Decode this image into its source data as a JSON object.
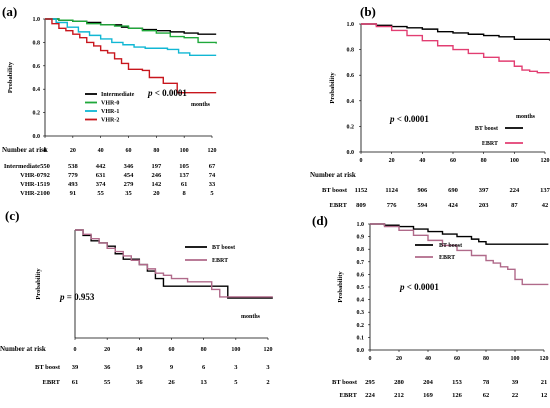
{
  "colors": {
    "black": "#000000",
    "green": "#1fa83a",
    "cyan": "#11b7d4",
    "red": "#c8161d",
    "pink": "#e23e72",
    "mauve": "#b06a8a"
  },
  "chart_data": [
    {
      "id": "a",
      "type": "line",
      "panel_label": "(a)",
      "ylabel": "Probability",
      "xlabel": "months",
      "xlim": [
        0,
        120
      ],
      "ylim": [
        0,
        1.0
      ],
      "x_ticks": [
        0,
        20,
        40,
        60,
        80,
        100,
        120
      ],
      "y_ticks": [
        "0.0",
        "0.2",
        "0.4",
        "0.6",
        "0.8",
        "1.0"
      ],
      "pvalue": "p < 0.0001",
      "legend": "inside bottom-left",
      "series": [
        {
          "name": "Intermediate",
          "color": "#000000",
          "x": [
            0,
            10,
            20,
            30,
            40,
            55,
            60,
            70,
            80,
            90,
            100,
            110,
            123
          ],
          "y": [
            1.0,
            0.99,
            0.98,
            0.97,
            0.95,
            0.93,
            0.92,
            0.91,
            0.9,
            0.89,
            0.88,
            0.87,
            0.87
          ]
        },
        {
          "name": "VHR-0",
          "color": "#1fa83a",
          "x": [
            0,
            10,
            20,
            30,
            40,
            50,
            60,
            70,
            80,
            90,
            100,
            110,
            123
          ],
          "y": [
            1.0,
            0.99,
            0.98,
            0.96,
            0.95,
            0.94,
            0.92,
            0.9,
            0.88,
            0.85,
            0.84,
            0.8,
            0.79
          ]
        },
        {
          "name": "VHR-1",
          "color": "#11b7d4",
          "x": [
            0,
            8,
            16,
            24,
            32,
            40,
            48,
            56,
            64,
            72,
            80,
            88,
            96,
            104,
            123
          ],
          "y": [
            1.0,
            0.97,
            0.93,
            0.89,
            0.86,
            0.83,
            0.8,
            0.78,
            0.76,
            0.75,
            0.75,
            0.74,
            0.71,
            0.69,
            0.69
          ]
        },
        {
          "name": "VHR-2",
          "color": "#c8161d",
          "x": [
            0,
            5,
            10,
            15,
            20,
            25,
            30,
            35,
            40,
            45,
            50,
            55,
            60,
            65,
            70,
            75,
            80,
            85,
            90,
            95,
            123
          ],
          "y": [
            1.0,
            0.96,
            0.92,
            0.9,
            0.87,
            0.84,
            0.8,
            0.77,
            0.73,
            0.71,
            0.66,
            0.62,
            0.57,
            0.57,
            0.56,
            0.5,
            0.5,
            0.45,
            0.45,
            0.37,
            0.37
          ]
        }
      ],
      "risk_table": {
        "title": "Number at risk",
        "rows": [
          {
            "name": "Intermediate",
            "values": [
              "550",
              "538",
              "442",
              "346",
              "197",
              "105",
              "67"
            ]
          },
          {
            "name": "VHR-0",
            "values": [
              "792",
              "779",
              "631",
              "454",
              "246",
              "137",
              "74"
            ]
          },
          {
            "name": "VHR-1",
            "values": [
              "519",
              "493",
              "374",
              "279",
              "142",
              "61",
              "33"
            ]
          },
          {
            "name": "VHR-2",
            "values": [
              "100",
              "91",
              "55",
              "35",
              "20",
              "8",
              "5"
            ]
          }
        ]
      }
    },
    {
      "id": "b",
      "type": "line",
      "panel_label": "(b)",
      "ylabel": "Probability",
      "xlabel": "months",
      "xlim": [
        0,
        120
      ],
      "ylim": [
        0,
        1.0
      ],
      "x_ticks": [
        0,
        20,
        40,
        60,
        80,
        100,
        120
      ],
      "y_ticks": [
        "0.0",
        "0.2",
        "0.4",
        "0.6",
        "0.8",
        "1.0"
      ],
      "pvalue": "p < 0.0001",
      "legend": "right",
      "series": [
        {
          "name": "BT boost",
          "color": "#000000",
          "x": [
            0,
            10,
            20,
            30,
            40,
            50,
            60,
            70,
            80,
            90,
            100,
            110,
            123
          ],
          "y": [
            1.0,
            0.99,
            0.98,
            0.97,
            0.96,
            0.94,
            0.93,
            0.92,
            0.91,
            0.9,
            0.88,
            0.88,
            0.87
          ]
        },
        {
          "name": "EBRT",
          "color": "#e23e72",
          "x": [
            0,
            10,
            20,
            30,
            40,
            50,
            60,
            70,
            80,
            90,
            100,
            105,
            110,
            115,
            123
          ],
          "y": [
            1.0,
            0.98,
            0.95,
            0.91,
            0.87,
            0.83,
            0.8,
            0.77,
            0.74,
            0.71,
            0.67,
            0.64,
            0.63,
            0.62,
            0.62
          ]
        }
      ],
      "risk_table": {
        "title": "Number at risk",
        "rows": [
          {
            "name": "BT boost",
            "values": [
              "1152",
              "1124",
              "906",
              "690",
              "397",
              "224",
              "137"
            ]
          },
          {
            "name": "EBRT",
            "values": [
              "809",
              "776",
              "594",
              "424",
              "203",
              "87",
              "42"
            ]
          }
        ]
      }
    },
    {
      "id": "c",
      "type": "line",
      "panel_label": "(c)",
      "ylabel": "Probability",
      "xlabel": "months",
      "xlim": [
        0,
        120
      ],
      "ylim": [
        0,
        1.0
      ],
      "x_ticks": [
        0,
        20,
        40,
        60,
        80,
        100,
        120
      ],
      "pvalue": "p = 0.953",
      "legend": "top-right",
      "series": [
        {
          "name": "BT boost",
          "color": "#000000",
          "x": [
            0,
            5,
            10,
            15,
            20,
            25,
            30,
            35,
            40,
            45,
            50,
            55,
            60,
            70,
            80,
            90,
            95,
            123
          ],
          "y": [
            1.0,
            0.95,
            0.9,
            0.88,
            0.85,
            0.78,
            0.73,
            0.73,
            0.68,
            0.62,
            0.55,
            0.48,
            0.48,
            0.48,
            0.48,
            0.48,
            0.37,
            0.37
          ]
        },
        {
          "name": "EBRT",
          "color": "#b06a8a",
          "x": [
            0,
            5,
            10,
            15,
            20,
            25,
            30,
            35,
            40,
            45,
            50,
            55,
            60,
            70,
            80,
            85,
            90,
            123
          ],
          "y": [
            1.0,
            0.96,
            0.92,
            0.88,
            0.83,
            0.8,
            0.76,
            0.72,
            0.68,
            0.64,
            0.6,
            0.58,
            0.55,
            0.52,
            0.52,
            0.45,
            0.38,
            0.38
          ]
        }
      ],
      "risk_table": {
        "title": "Number at risk",
        "rows": [
          {
            "name": "BT boost",
            "values": [
              "39",
              "36",
              "19",
              "9",
              "6",
              "3",
              "3"
            ]
          },
          {
            "name": "EBRT",
            "values": [
              "61",
              "55",
              "36",
              "26",
              "13",
              "5",
              "2"
            ]
          }
        ]
      }
    },
    {
      "id": "d",
      "type": "line",
      "panel_label": "(d)",
      "ylabel": "Probability",
      "xlabel": "months",
      "xlim": [
        0,
        120
      ],
      "ylim": [
        0,
        1.0
      ],
      "x_ticks": [
        0,
        20,
        40,
        60,
        80,
        100,
        120
      ],
      "y_ticks": [
        "0.0",
        "0.1",
        "0.2",
        "0.3",
        "0.4",
        "0.5",
        "0.6",
        "0.7",
        "0.8",
        "0.9",
        "1.0"
      ],
      "pvalue": "p < 0.0001",
      "legend": "top-center",
      "series": [
        {
          "name": "BT boost",
          "color": "#000000",
          "x": [
            0,
            10,
            20,
            30,
            40,
            50,
            60,
            70,
            75,
            80,
            123
          ],
          "y": [
            1.0,
            0.99,
            0.98,
            0.96,
            0.94,
            0.92,
            0.9,
            0.88,
            0.86,
            0.84,
            0.84
          ]
        },
        {
          "name": "EBRT",
          "color": "#b06a8a",
          "x": [
            0,
            10,
            20,
            30,
            40,
            50,
            60,
            70,
            80,
            85,
            90,
            95,
            100,
            105,
            110,
            123
          ],
          "y": [
            1.0,
            0.98,
            0.95,
            0.91,
            0.87,
            0.83,
            0.79,
            0.75,
            0.71,
            0.69,
            0.66,
            0.64,
            0.56,
            0.52,
            0.52,
            0.52
          ]
        }
      ],
      "risk_table": {
        "title": "Number at risk",
        "rows": [
          {
            "name": "BT boost",
            "values": [
              "295",
              "280",
              "204",
              "153",
              "78",
              "39",
              "21"
            ]
          },
          {
            "name": "EBRT",
            "values": [
              "224",
              "212",
              "169",
              "126",
              "62",
              "22",
              "12"
            ]
          }
        ]
      }
    }
  ]
}
